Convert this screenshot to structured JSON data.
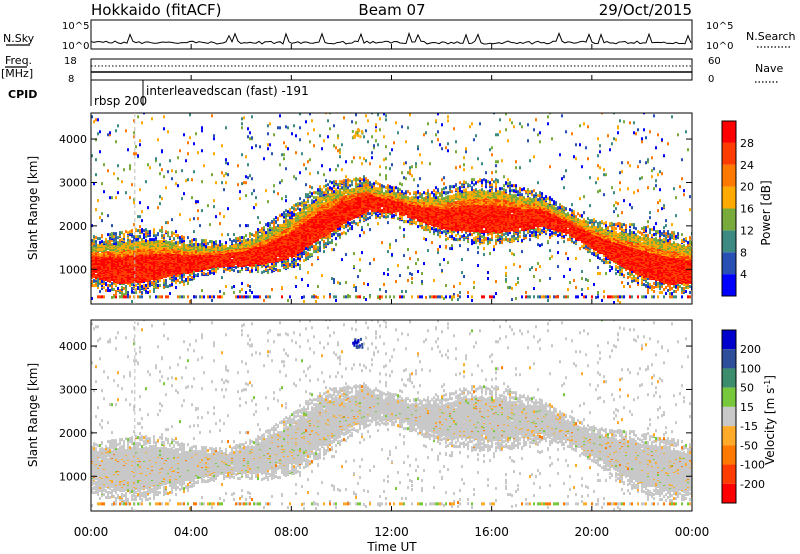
{
  "header": {
    "title_left": "Hokkaido (fitACF)",
    "title_center": "Beam 07",
    "title_right": "29/Oct/2015"
  },
  "info_panel": {
    "nsky_label": "N.Sky",
    "nsearch_label": "N.Search",
    "freq_label": "Freq.",
    "freq_unit": "[MHz]",
    "nave_label": "Nave",
    "cpid_label": "CPID",
    "left_ticks_noise": [
      "10^5",
      "10^0"
    ],
    "right_ticks_noise": [
      "10^5",
      "10^0"
    ],
    "left_ticks_freq": [
      "18",
      "8"
    ],
    "right_ticks_nave": [
      "60",
      "0"
    ],
    "cpid_entries": [
      {
        "text": "rbsp 200",
        "hour": 0.0
      },
      {
        "text": "interleavedscan (fast) -191",
        "hour": 1.75
      }
    ]
  },
  "chart_data": [
    {
      "type": "heatmap",
      "title": "",
      "xlabel": "Time UT",
      "ylabel": "Slant Range [km]",
      "x_ticks": [
        "00:00",
        "04:00",
        "08:00",
        "12:00",
        "16:00",
        "20:00",
        "00:00"
      ],
      "y_ticks": [
        1000,
        2000,
        3000,
        4000
      ],
      "xlim_hours": [
        0,
        24
      ],
      "ylim_km": [
        200,
        4600
      ],
      "colorbar": {
        "label": "Power [dB]",
        "levels": [
          4,
          8,
          12,
          16,
          20,
          24,
          28
        ],
        "range": [
          0,
          30
        ],
        "colors": [
          "#0000ff",
          "#2850b4",
          "#3c8a82",
          "#78aa3c",
          "#ffaa00",
          "#ff7800",
          "#ff3c00",
          "#ff0000"
        ]
      },
      "main_band": [
        {
          "hour": 0,
          "km": 1150
        },
        {
          "hour": 1,
          "km": 1100
        },
        {
          "hour": 2,
          "km": 1150
        },
        {
          "hour": 3,
          "km": 1200
        },
        {
          "hour": 4,
          "km": 1200
        },
        {
          "hour": 5,
          "km": 1250
        },
        {
          "hour": 6,
          "km": 1300
        },
        {
          "hour": 7,
          "km": 1450
        },
        {
          "hour": 8,
          "km": 1700
        },
        {
          "hour": 9,
          "km": 2100
        },
        {
          "hour": 10,
          "km": 2400
        },
        {
          "hour": 11,
          "km": 2600
        },
        {
          "hour": 12,
          "km": 2500
        },
        {
          "hour": 13,
          "km": 2350
        },
        {
          "hour": 14,
          "km": 2250
        },
        {
          "hour": 15,
          "km": 2300
        },
        {
          "hour": 16,
          "km": 2300
        },
        {
          "hour": 17,
          "km": 2250
        },
        {
          "hour": 18,
          "km": 2250
        },
        {
          "hour": 19,
          "km": 2000
        },
        {
          "hour": 20,
          "km": 1700
        },
        {
          "hour": 21,
          "km": 1450
        },
        {
          "hour": 22,
          "km": 1250
        },
        {
          "hour": 23,
          "km": 1100
        },
        {
          "hour": 24,
          "km": 1050
        }
      ]
    },
    {
      "type": "heatmap",
      "title": "",
      "xlabel": "Time UT",
      "ylabel": "Slant Range [km]",
      "x_ticks": [
        "00:00",
        "04:00",
        "08:00",
        "12:00",
        "16:00",
        "20:00",
        "00:00"
      ],
      "y_ticks": [
        1000,
        2000,
        3000,
        4000
      ],
      "xlim_hours": [
        0,
        24
      ],
      "ylim_km": [
        200,
        4600
      ],
      "colorbar": {
        "label": "Velocity [m s^-1]",
        "levels": [
          200,
          100,
          50,
          15,
          -15,
          -50,
          -100,
          -200
        ],
        "colors": [
          "#0000cd",
          "#2e4d9b",
          "#3c8c6e",
          "#78c83c",
          "#c8c8c8",
          "#ffaa28",
          "#ff7800",
          "#ff3c00",
          "#ff0000"
        ]
      }
    }
  ]
}
